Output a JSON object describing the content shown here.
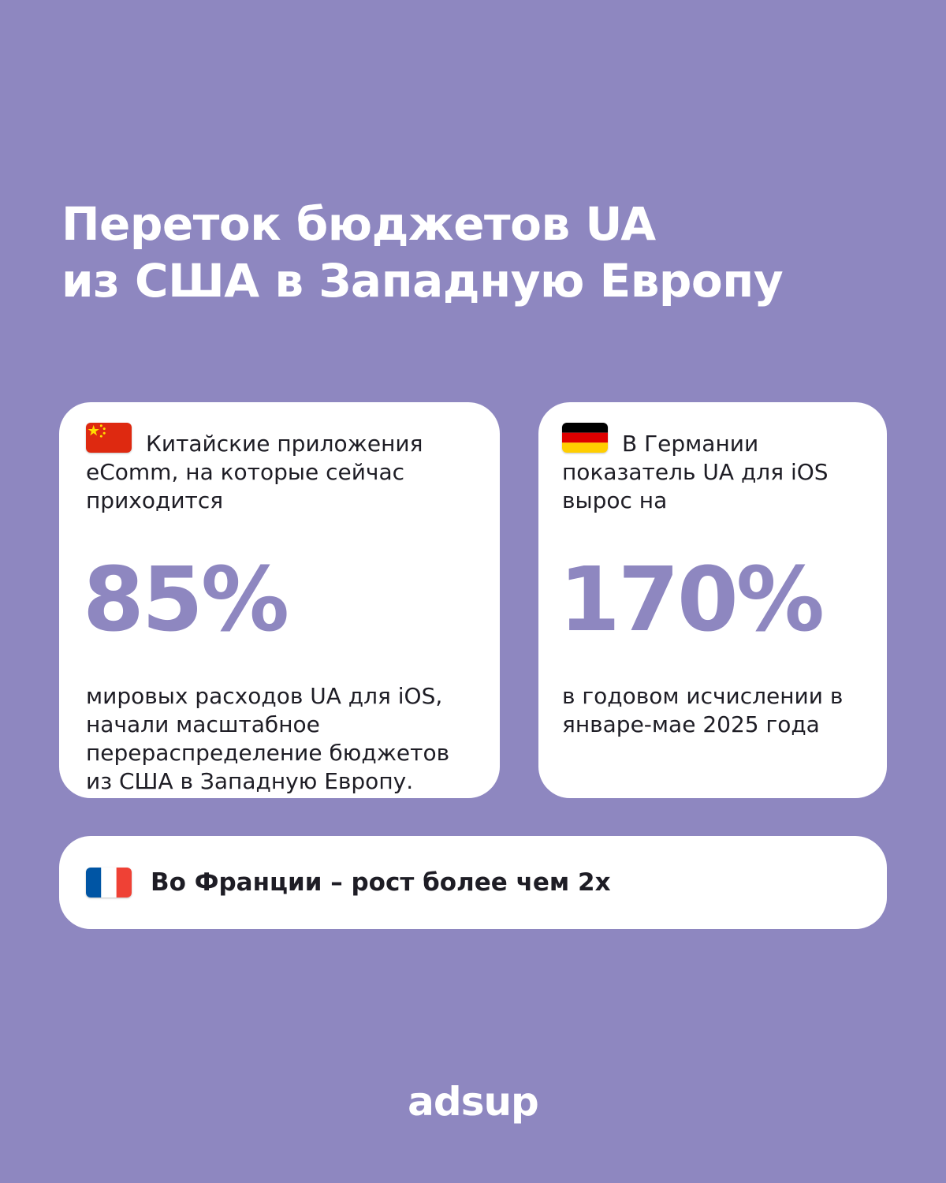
{
  "title": {
    "line1": "Переток бюджетов UA",
    "line2": "из США в Западную Европу"
  },
  "card_china": {
    "flag": "china-flag-icon",
    "intro": "Китайские приложения eComm, на которые сейчас приходится",
    "value": "85%",
    "description": "мировых расходов UA для iOS, начали масштабное перераспределение бюджетов из США в Западную Европу."
  },
  "card_germany": {
    "flag": "germany-flag-icon",
    "intro": "В Германии показатель UA для iOS вырос на",
    "value": "170%",
    "description": "в годовом исчислении в январе-мае 2025 года"
  },
  "card_france": {
    "flag": "france-flag-icon",
    "text": "Во Франции – рост более чем 2х"
  },
  "logo": "adsup",
  "colors": {
    "background": "#8e87c0",
    "accent": "#8e87c0",
    "card": "#ffffff",
    "text": "#1e1d25"
  }
}
